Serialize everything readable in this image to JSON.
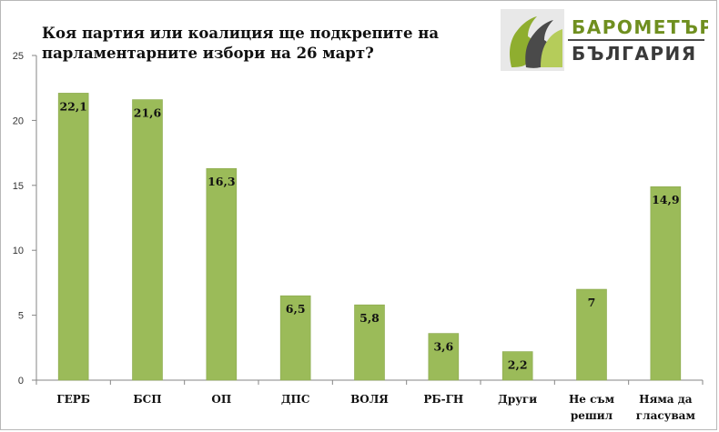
{
  "header": {
    "title_line1": "Коя партия или коалиция ще подкрепите на",
    "title_line2": "парламентарните избори на 26 март?"
  },
  "logo": {
    "line1": "БАРОМЕТЪР",
    "line2": "БЪЛГАРИЯ"
  },
  "colors": {
    "bar": "#9bbb59",
    "bar_stroke": "#8aa84d",
    "axis": "#868686",
    "logo_green": "#7a9a2a",
    "logo_dark": "#3a3a3a"
  },
  "chart_data": {
    "type": "bar",
    "categories": [
      "ГЕРБ",
      "БСП",
      "ОП",
      "ДПС",
      "ВОЛЯ",
      "РБ-ГН",
      "Други",
      "Не съм решил",
      "Няма да гласувам"
    ],
    "category_lines": [
      [
        "ГЕРБ"
      ],
      [
        "БСП"
      ],
      [
        "ОП"
      ],
      [
        "ДПС"
      ],
      [
        "ВОЛЯ"
      ],
      [
        "РБ-ГН"
      ],
      [
        "Други"
      ],
      [
        "Не съм",
        "решил"
      ],
      [
        "Няма да",
        "гласувам"
      ]
    ],
    "values": [
      22.1,
      21.6,
      16.3,
      6.5,
      5.8,
      3.6,
      2.2,
      7,
      14.9
    ],
    "value_labels": [
      "22,1",
      "21,6",
      "16,3",
      "6,5",
      "5,8",
      "3,6",
      "2,2",
      "7",
      "14,9"
    ],
    "yticks": [
      0,
      5,
      10,
      15,
      20,
      25
    ],
    "ylim": [
      0,
      25
    ],
    "grid": false,
    "legend": "none"
  }
}
